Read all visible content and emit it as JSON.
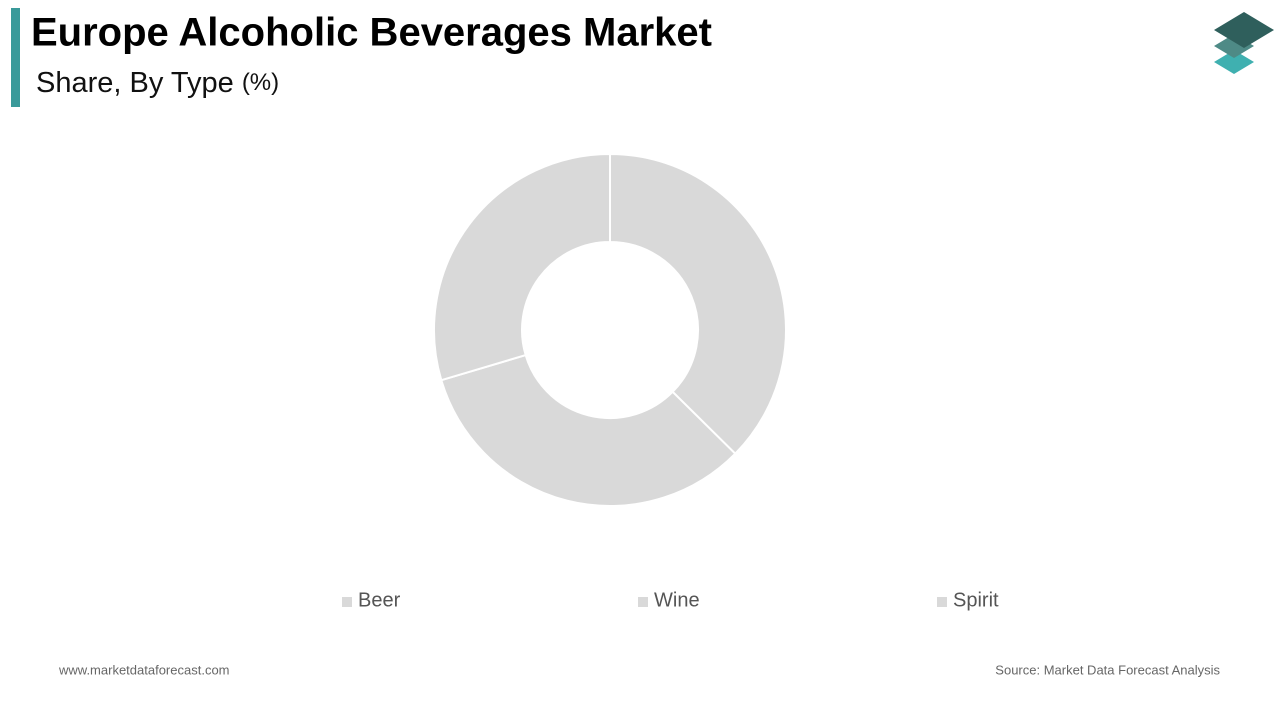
{
  "chart_data": {
    "type": "pie",
    "title": "Europe Alcoholic Beverages Market",
    "subtitle": "Share, By Type",
    "unit_label": "(%)",
    "categories": [
      "Beer",
      "Wine",
      "Spirit"
    ],
    "values": [
      37.4,
      33.0,
      29.6
    ],
    "colors": [
      "#d9d9d9",
      "#d9d9d9",
      "#d9d9d9"
    ],
    "footer_left": "www.marketdataforecast.com",
    "footer_right": "Source: Market Data Forecast Analysis"
  }
}
